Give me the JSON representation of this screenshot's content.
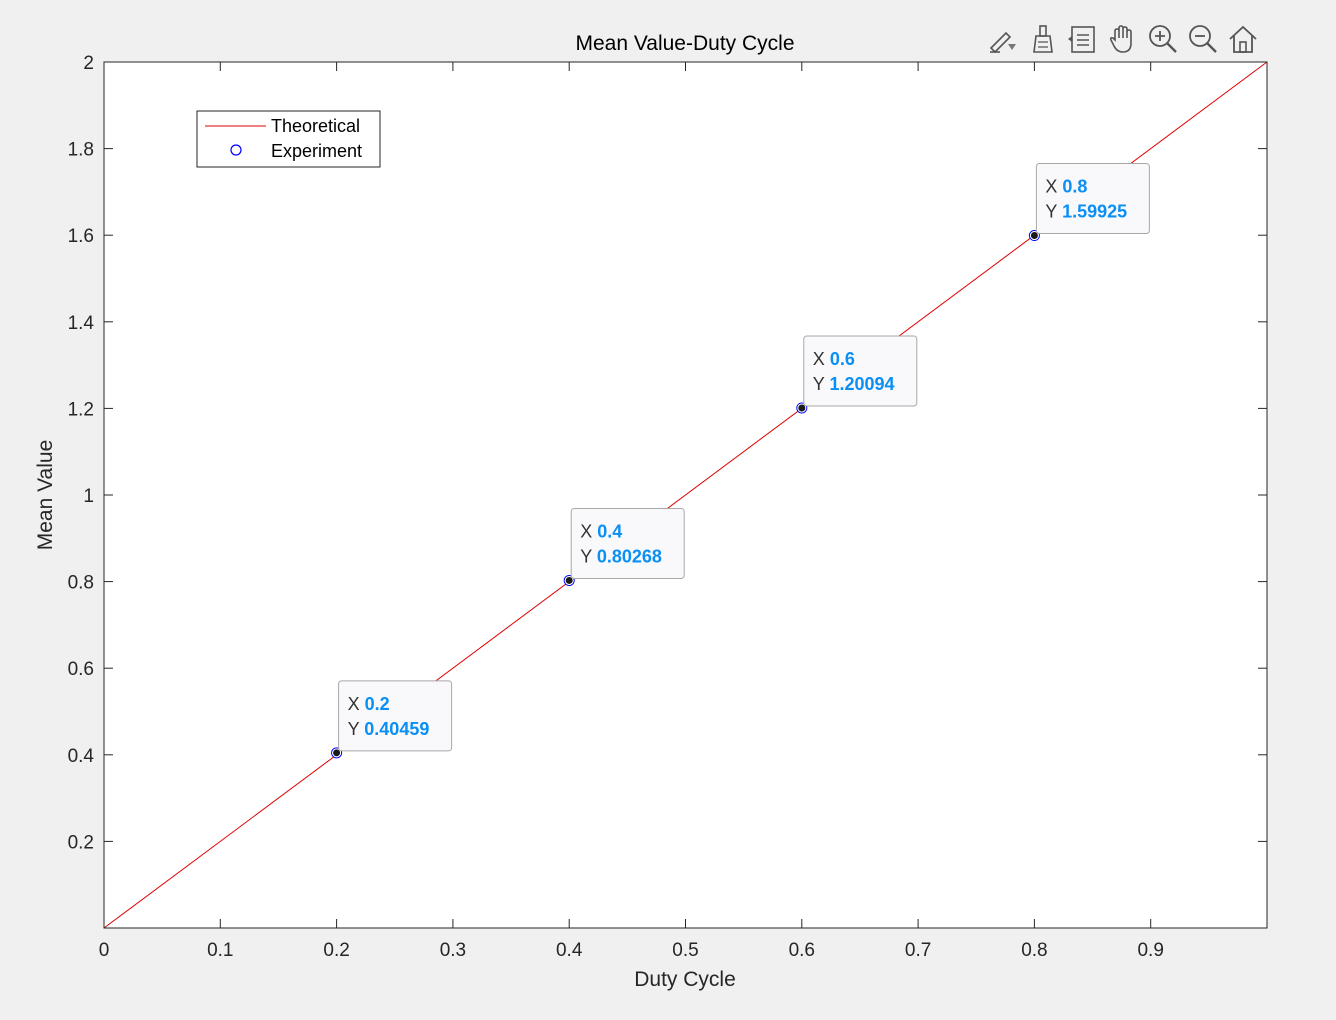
{
  "toolbar": {
    "buttons": [
      {
        "name": "edit-plot-icon"
      },
      {
        "name": "brush-icon"
      },
      {
        "name": "legend-toggle-icon"
      },
      {
        "name": "pan-hand-icon"
      },
      {
        "name": "zoom-in-icon"
      },
      {
        "name": "zoom-out-icon"
      },
      {
        "name": "home-restore-view-icon"
      }
    ]
  },
  "colors": {
    "theoretical": "#e00000",
    "experiment": "#0000ff",
    "datatip_value": "#0a8ff5",
    "datatip_label": "#333333"
  },
  "chart_data": {
    "type": "line",
    "title": "Mean Value-Duty Cycle",
    "xlabel": "Duty Cycle",
    "ylabel": "Mean Value",
    "xlim": [
      0,
      1
    ],
    "ylim": [
      0,
      2
    ],
    "xticks": [
      "0",
      "0.1",
      "0.2",
      "0.3",
      "0.4",
      "0.5",
      "0.6",
      "0.7",
      "0.8",
      "0.9"
    ],
    "xtick_values": [
      0,
      0.1,
      0.2,
      0.3,
      0.4,
      0.5,
      0.6,
      0.7,
      0.8,
      0.9
    ],
    "yticks": [
      "0.2",
      "0.4",
      "0.6",
      "0.8",
      "1",
      "1.2",
      "1.4",
      "1.6",
      "1.8",
      "2"
    ],
    "ytick_values": [
      0.2,
      0.4,
      0.6,
      0.8,
      1.0,
      1.2,
      1.4,
      1.6,
      1.8,
      2.0
    ],
    "grid": false,
    "legend_position": "top-left",
    "series": [
      {
        "name": "Theoretical",
        "style": "line",
        "x": [
          0,
          1
        ],
        "y": [
          0,
          2
        ]
      },
      {
        "name": "Experiment",
        "style": "marker-circle",
        "x": [
          0.2,
          0.4,
          0.6,
          0.8
        ],
        "y": [
          0.40459,
          0.80268,
          1.20094,
          1.59925
        ]
      }
    ],
    "datatips": [
      {
        "x_label": "X",
        "x_value": "0.2",
        "y_label": "Y",
        "y_value": "0.40459",
        "x": 0.2,
        "y": 0.40459
      },
      {
        "x_label": "X",
        "x_value": "0.4",
        "y_label": "Y",
        "y_value": "0.80268",
        "x": 0.4,
        "y": 0.80268
      },
      {
        "x_label": "X",
        "x_value": "0.6",
        "y_label": "Y",
        "y_value": "1.20094",
        "x": 0.6,
        "y": 1.20094
      },
      {
        "x_label": "X",
        "x_value": "0.8",
        "y_label": "Y",
        "y_value": "1.59925",
        "x": 0.8,
        "y": 1.59925
      }
    ]
  }
}
